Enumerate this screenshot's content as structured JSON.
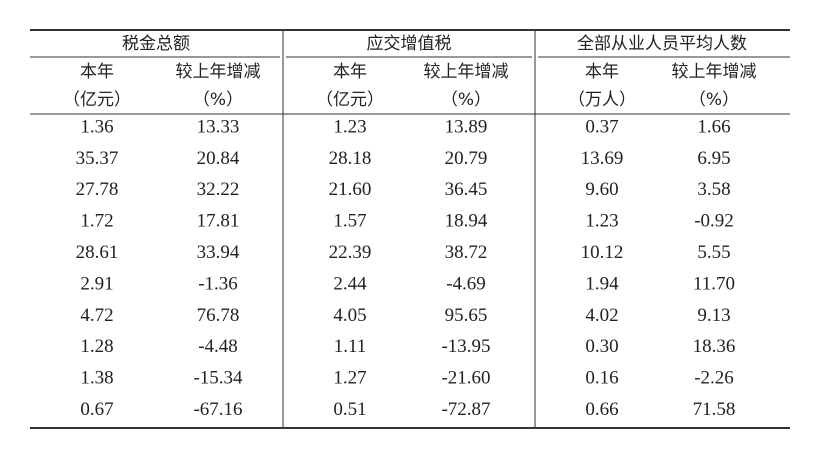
{
  "table": {
    "groups": [
      "税金总额",
      "应交增值税",
      "全部从业人员平均人数"
    ],
    "subheaders": [
      [
        "本年",
        "（亿元）"
      ],
      [
        "较上年增减",
        "（%）"
      ],
      [
        "本年",
        "（亿元）"
      ],
      [
        "较上年增减",
        "（%）"
      ],
      [
        "本年",
        "（万人）"
      ],
      [
        "较上年增减",
        "（%）"
      ]
    ],
    "rows": [
      [
        "1.36",
        "13.33",
        "1.23",
        "13.89",
        "0.37",
        "1.66"
      ],
      [
        "35.37",
        "20.84",
        "28.18",
        "20.79",
        "13.69",
        "6.95"
      ],
      [
        "27.78",
        "32.22",
        "21.60",
        "36.45",
        "9.60",
        "3.58"
      ],
      [
        "1.72",
        "17.81",
        "1.57",
        "18.94",
        "1.23",
        "-0.92"
      ],
      [
        "28.61",
        "33.94",
        "22.39",
        "38.72",
        "10.12",
        "5.55"
      ],
      [
        "2.91",
        "-1.36",
        "2.44",
        "-4.69",
        "1.94",
        "11.70"
      ],
      [
        "4.72",
        "76.78",
        "4.05",
        "95.65",
        "4.02",
        "9.13"
      ],
      [
        "1.28",
        "-4.48",
        "1.11",
        "-13.95",
        "0.30",
        "18.36"
      ],
      [
        "1.38",
        "-15.34",
        "1.27",
        "-21.60",
        "0.16",
        "-2.26"
      ],
      [
        "0.67",
        "-67.16",
        "0.51",
        "-72.87",
        "0.66",
        "71.58"
      ]
    ]
  }
}
